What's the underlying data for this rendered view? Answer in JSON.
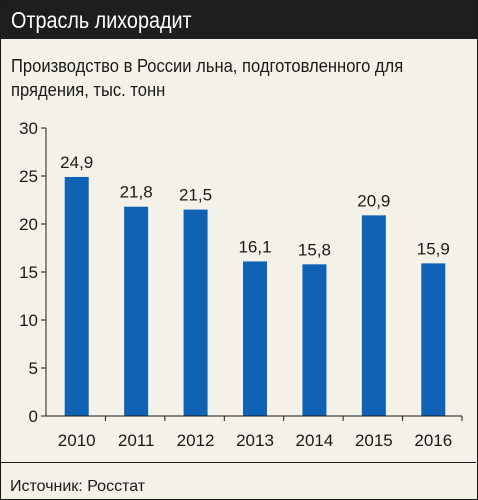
{
  "header": {
    "title": "Отрасль лихорадит"
  },
  "subtitle": "Производство в России льна, подготовленного для прядения, тыс. тонн",
  "source": "Источник: Росстат",
  "colors": {
    "bar": "#0f62b4",
    "title_bg": "#1e1e1e",
    "panel_bg": "#f4f2e8",
    "grid": "#1a1a1a"
  },
  "chart_data": {
    "type": "bar",
    "categories": [
      "2010",
      "2011",
      "2012",
      "2013",
      "2014",
      "2015",
      "2016"
    ],
    "values": [
      24.9,
      21.8,
      21.5,
      16.1,
      15.8,
      20.9,
      15.9
    ],
    "value_labels": [
      "24,9",
      "21,8",
      "21,5",
      "16,1",
      "15,8",
      "20,9",
      "15,9"
    ],
    "yticks": [
      "0",
      "5",
      "10",
      "15",
      "20",
      "25",
      "30"
    ],
    "ylim": [
      0,
      30
    ],
    "grid": false,
    "legend": "none"
  }
}
